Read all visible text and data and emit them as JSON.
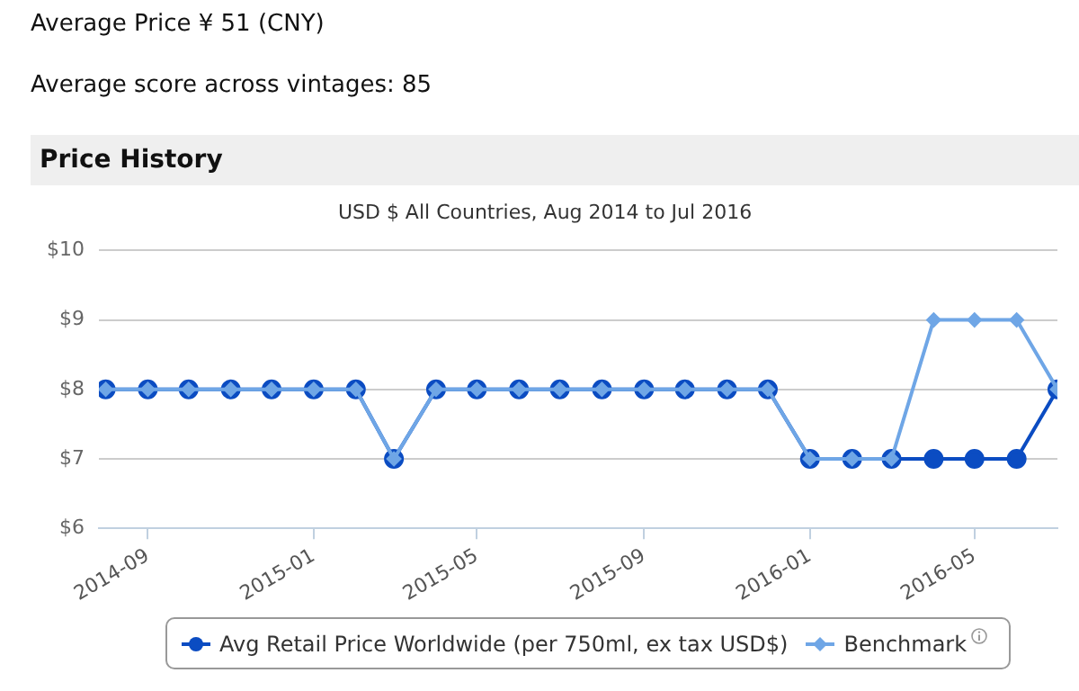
{
  "chart_data": {
    "type": "line",
    "title": "Price History",
    "subtitle": "USD $ All Countries, Aug 2014 to Jul 2016",
    "annotations": [
      "Average Price ¥ 51 (CNY)",
      "Average score across vintages: 85"
    ],
    "x": [
      "2014-08",
      "2014-09",
      "2014-10",
      "2014-11",
      "2014-12",
      "2015-01",
      "2015-02",
      "2015-03",
      "2015-04",
      "2015-05",
      "2015-06",
      "2015-07",
      "2015-08",
      "2015-09",
      "2015-10",
      "2015-11",
      "2015-12",
      "2016-01",
      "2016-02",
      "2016-03",
      "2016-04",
      "2016-05",
      "2016-06",
      "2016-07"
    ],
    "series": [
      {
        "name": "Avg Retail Price Worldwide (per 750ml, ex tax USD$)",
        "color": "#0b4cc2",
        "marker": "circle",
        "values": [
          8,
          8,
          8,
          8,
          8,
          8,
          8,
          7,
          8,
          8,
          8,
          8,
          8,
          8,
          8,
          8,
          8,
          7,
          7,
          7,
          7,
          7,
          7,
          8
        ]
      },
      {
        "name": "Benchmark",
        "color": "#6fa6e6",
        "marker": "diamond",
        "values": [
          8,
          8,
          8,
          8,
          8,
          8,
          8,
          7,
          8,
          8,
          8,
          8,
          8,
          8,
          8,
          8,
          8,
          7,
          7,
          7,
          9,
          9,
          9,
          8
        ]
      }
    ],
    "xlim": [
      "2014-07-27",
      "2016-07-01"
    ],
    "xticks": [
      "2014-09",
      "2015-01",
      "2015-05",
      "2015-09",
      "2016-01",
      "2016-05"
    ],
    "ylim": [
      6,
      10
    ],
    "yticks": [
      {
        "value": 6,
        "label": "$6"
      },
      {
        "value": 7,
        "label": "$7"
      },
      {
        "value": 8,
        "label": "$8"
      },
      {
        "value": 9,
        "label": "$9"
      },
      {
        "value": 10,
        "label": "$10"
      }
    ],
    "grid": "y",
    "legend": "bottom",
    "line_style": "solid"
  }
}
